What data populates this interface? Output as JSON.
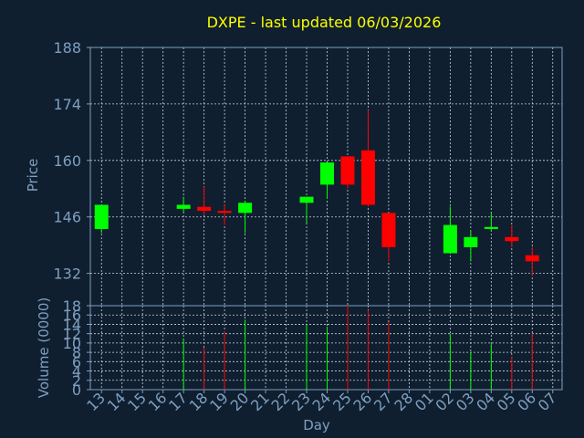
{
  "chart_data": {
    "type": "candlestick",
    "title": "DXPE - last updated 06/03/2026",
    "ylabel": "Price",
    "volume_label": "Volume (0000)",
    "xlabel": "Day",
    "ylim": [
      124,
      188
    ],
    "price_ticks": [
      188,
      174,
      160,
      146,
      132
    ],
    "volume_ylim": [
      0,
      18
    ],
    "volume_ticks": [
      18,
      16,
      14,
      12,
      10,
      8,
      6,
      4,
      2,
      0
    ],
    "grid": true,
    "colors": {
      "up": "#00ff00",
      "down": "#ff0000",
      "background": "#0f1f30",
      "axis": "#7f9fbf",
      "title": "#ffff00"
    },
    "x_labels": [
      "13",
      "14",
      "15",
      "16",
      "17",
      "18",
      "19",
      "20",
      "21",
      "22",
      "23",
      "24",
      "25",
      "26",
      "27",
      "28",
      "01",
      "02",
      "03",
      "04",
      "05",
      "06",
      "07"
    ],
    "candles": [
      {
        "i": 0,
        "open": 143,
        "close": 149,
        "high": 149,
        "low": 142,
        "volume": 0
      },
      {
        "i": 4,
        "open": 148,
        "close": 149,
        "high": 151,
        "low": 147,
        "volume": 11
      },
      {
        "i": 5,
        "open": 148.5,
        "close": 147.5,
        "high": 153.5,
        "low": 146.5,
        "volume": 9
      },
      {
        "i": 6,
        "open": 147.5,
        "close": 147,
        "high": 149,
        "low": 144,
        "volume": 12.5
      },
      {
        "i": 7,
        "open": 147,
        "close": 149.5,
        "high": 150,
        "low": 142,
        "volume": 15
      },
      {
        "i": 10,
        "open": 149.5,
        "close": 151,
        "high": 151,
        "low": 144.5,
        "volume": 14
      },
      {
        "i": 11,
        "open": 154,
        "close": 159.5,
        "high": 159.5,
        "low": 150.5,
        "volume": 13.5
      },
      {
        "i": 12,
        "open": 161,
        "close": 154,
        "high": 161,
        "low": 153,
        "volume": 18
      },
      {
        "i": 13,
        "open": 162.5,
        "close": 149,
        "high": 172.5,
        "low": 148.5,
        "volume": 17
      },
      {
        "i": 14,
        "open": 147,
        "close": 138.5,
        "high": 147,
        "low": 135,
        "volume": 14.5
      },
      {
        "i": 17,
        "open": 137,
        "close": 144,
        "high": 148.5,
        "low": 137,
        "volume": 12
      },
      {
        "i": 18,
        "open": 138.5,
        "close": 141,
        "high": 142.5,
        "low": 135,
        "volume": 8
      },
      {
        "i": 19,
        "open": 143,
        "close": 143.5,
        "high": 147,
        "low": 142.5,
        "volume": 10
      },
      {
        "i": 20,
        "open": 141,
        "close": 140,
        "high": 144,
        "low": 138.5,
        "volume": 7
      },
      {
        "i": 21,
        "open": 136.5,
        "close": 135,
        "high": 138.5,
        "low": 131.5,
        "volume": 12
      }
    ]
  }
}
